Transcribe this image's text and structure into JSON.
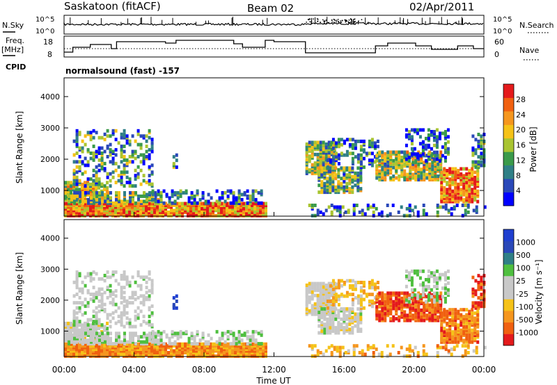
{
  "header": {
    "site": "Saskatoon (fitACF)",
    "beam": "Beam 02",
    "date": "02/Apr/2011"
  },
  "noise_panel": {
    "left_label": "N.Sky",
    "right_label": "N.Search",
    "left_ticks": [
      "10^5",
      "10^0"
    ],
    "right_ticks": [
      "10^5",
      "10^0"
    ]
  },
  "freq_panel": {
    "left_label_1": "Freq.",
    "left_label_2": "[MHz]",
    "right_label": "Nave",
    "left_ticks": [
      "18",
      "8"
    ],
    "right_ticks": [
      "60",
      "0"
    ]
  },
  "cpid": {
    "label": "CPID",
    "text": "normalsound (fast) -157"
  },
  "colors": {
    "power": [
      "#0000ff",
      "#2a48b8",
      "#2f7f86",
      "#3a9a4a",
      "#a9c431",
      "#f5c218",
      "#f5961e",
      "#f06010",
      "#e41a1c"
    ],
    "velocity": [
      "#e41a1c",
      "#f06010",
      "#f5961e",
      "#f5c218",
      "#c8c8c8",
      "#c8c8c8",
      "#4fbf3f",
      "#2f7f86",
      "#2a48b8",
      "#1f3fcf"
    ]
  },
  "chart_data": [
    {
      "type": "heatmap",
      "name": "power",
      "ylabel": "Slant Range [km]",
      "yticks": [
        1000,
        2000,
        3000,
        4000
      ],
      "ylim": [
        180,
        4600
      ],
      "xlim": [
        0,
        24
      ],
      "colorbar_label": "Power [dB]",
      "colorbar_ticks": [
        "4",
        "8",
        "12",
        "16",
        "20",
        "24",
        "28"
      ],
      "colorbar_range": [
        0,
        32
      ]
    },
    {
      "type": "heatmap",
      "name": "velocity",
      "ylabel": "Slant Range [km]",
      "yticks": [
        1000,
        2000,
        3000,
        4000
      ],
      "ylim": [
        180,
        4600
      ],
      "xlim": [
        0,
        24
      ],
      "xlabel": "Time UT",
      "xticks": [
        "00:00",
        "04:00",
        "08:00",
        "12:00",
        "16:00",
        "20:00",
        "00:00"
      ],
      "colorbar_label": "Velocity [m s⁻¹]",
      "colorbar_ticks": [
        "1000",
        "500",
        "100",
        "25",
        "-25",
        "-100",
        "-500",
        "-1000"
      ]
    }
  ]
}
